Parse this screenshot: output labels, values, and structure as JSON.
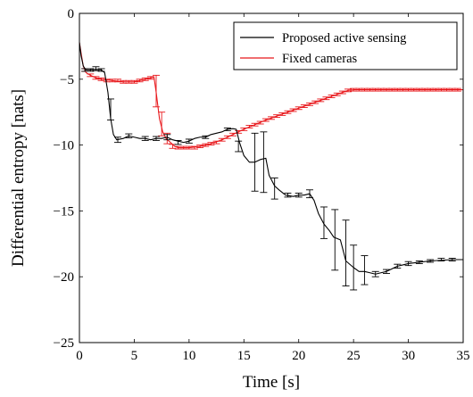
{
  "chart_data": {
    "type": "line",
    "xlabel": "Time [s]",
    "ylabel": "Differential entropy [nats]",
    "xlim": [
      0,
      35
    ],
    "ylim": [
      -25,
      0
    ],
    "xticks": [
      0,
      5,
      10,
      15,
      20,
      25,
      30,
      35
    ],
    "yticks": [
      0,
      -5,
      -10,
      -15,
      -20,
      -25
    ],
    "legend_position": "top-right",
    "series": [
      {
        "name": "Proposed active sensing",
        "color": "#000000",
        "line": [
          [
            0,
            -2.2
          ],
          [
            0.15,
            -3.2
          ],
          [
            0.35,
            -4.0
          ],
          [
            0.6,
            -4.3
          ],
          [
            1.0,
            -4.3
          ],
          [
            1.5,
            -4.25
          ],
          [
            2.0,
            -4.3
          ],
          [
            2.3,
            -4.5
          ],
          [
            2.6,
            -6.0
          ],
          [
            2.85,
            -8.0
          ],
          [
            3.1,
            -9.2
          ],
          [
            3.4,
            -9.6
          ],
          [
            4.0,
            -9.5
          ],
          [
            4.5,
            -9.3
          ],
          [
            5.0,
            -9.4
          ],
          [
            5.5,
            -9.5
          ],
          [
            6.0,
            -9.5
          ],
          [
            6.5,
            -9.6
          ],
          [
            7.0,
            -9.5
          ],
          [
            7.5,
            -9.5
          ],
          [
            8.0,
            -9.4
          ],
          [
            8.5,
            -9.6
          ],
          [
            9.0,
            -9.7
          ],
          [
            9.5,
            -9.8
          ],
          [
            10.0,
            -9.7
          ],
          [
            10.5,
            -9.5
          ],
          [
            11.0,
            -9.4
          ],
          [
            11.5,
            -9.4
          ],
          [
            12.0,
            -9.2
          ],
          [
            12.5,
            -9.1
          ],
          [
            13.0,
            -9.0
          ],
          [
            13.5,
            -8.8
          ],
          [
            14.0,
            -8.75
          ],
          [
            14.3,
            -8.8
          ],
          [
            14.6,
            -9.8
          ],
          [
            15.0,
            -10.8
          ],
          [
            15.5,
            -11.3
          ],
          [
            16.0,
            -11.3
          ],
          [
            16.5,
            -11.1
          ],
          [
            17.0,
            -11.0
          ],
          [
            17.3,
            -12.3
          ],
          [
            17.8,
            -13.1
          ],
          [
            18.2,
            -13.4
          ],
          [
            18.8,
            -13.8
          ],
          [
            19.5,
            -13.9
          ],
          [
            20.0,
            -13.8
          ],
          [
            20.5,
            -13.8
          ],
          [
            21.0,
            -13.7
          ],
          [
            21.4,
            -14.2
          ],
          [
            21.8,
            -15.2
          ],
          [
            22.3,
            -16.0
          ],
          [
            22.8,
            -16.5
          ],
          [
            23.2,
            -17.0
          ],
          [
            23.8,
            -17.2
          ],
          [
            24.3,
            -18.8
          ],
          [
            25.0,
            -19.3
          ],
          [
            25.5,
            -19.6
          ],
          [
            26.0,
            -19.6
          ],
          [
            26.5,
            -19.7
          ],
          [
            27.0,
            -19.8
          ],
          [
            27.5,
            -19.7
          ],
          [
            28.0,
            -19.6
          ],
          [
            28.5,
            -19.4
          ],
          [
            29.0,
            -19.2
          ],
          [
            29.5,
            -19.1
          ],
          [
            30.0,
            -19.0
          ],
          [
            31.0,
            -18.9
          ],
          [
            32.0,
            -18.8
          ],
          [
            33.0,
            -18.75
          ],
          [
            34.0,
            -18.7
          ],
          [
            35.0,
            -18.7
          ]
        ],
        "errorbars": [
          [
            0.5,
            -4.3,
            0.1
          ],
          [
            1.0,
            -4.3,
            0.1
          ],
          [
            1.5,
            -4.2,
            0.15
          ],
          [
            2.0,
            -4.3,
            0.1
          ],
          [
            2.85,
            -7.3,
            0.8
          ],
          [
            3.5,
            -9.6,
            0.2
          ],
          [
            4.5,
            -9.3,
            0.15
          ],
          [
            6.0,
            -9.5,
            0.15
          ],
          [
            7.0,
            -9.5,
            0.15
          ],
          [
            8.0,
            -9.4,
            0.2
          ],
          [
            9.0,
            -9.8,
            0.15
          ],
          [
            10.0,
            -9.7,
            0.15
          ],
          [
            11.5,
            -9.4,
            0.1
          ],
          [
            13.5,
            -8.8,
            0.1
          ],
          [
            14.5,
            -10.1,
            0.4
          ],
          [
            16.0,
            -11.3,
            2.2
          ],
          [
            16.8,
            -11.3,
            2.3
          ],
          [
            17.8,
            -13.3,
            0.8
          ],
          [
            19.0,
            -13.8,
            0.15
          ],
          [
            20.0,
            -13.8,
            0.15
          ],
          [
            21.0,
            -13.7,
            0.3
          ],
          [
            22.3,
            -15.9,
            1.2
          ],
          [
            23.3,
            -17.2,
            2.3
          ],
          [
            24.3,
            -18.2,
            2.5
          ],
          [
            25.0,
            -19.3,
            1.7
          ],
          [
            26.0,
            -19.5,
            1.1
          ],
          [
            27.0,
            -19.8,
            0.2
          ],
          [
            28.0,
            -19.6,
            0.15
          ],
          [
            29.0,
            -19.2,
            0.15
          ],
          [
            30.0,
            -19.0,
            0.15
          ],
          [
            31.0,
            -18.9,
            0.1
          ],
          [
            32.0,
            -18.8,
            0.1
          ],
          [
            33.0,
            -18.7,
            0.1
          ],
          [
            34.0,
            -18.7,
            0.1
          ]
        ]
      },
      {
        "name": "Fixed cameras",
        "color": "#e8171b",
        "line": [
          [
            0,
            -2.2
          ],
          [
            0.15,
            -3.0
          ],
          [
            0.35,
            -4.0
          ],
          [
            0.6,
            -4.5
          ],
          [
            1.0,
            -4.7
          ],
          [
            1.5,
            -4.9
          ],
          [
            2.0,
            -5.0
          ],
          [
            3.0,
            -5.1
          ],
          [
            4.0,
            -5.2
          ],
          [
            5.0,
            -5.2
          ],
          [
            5.5,
            -5.1
          ],
          [
            6.0,
            -5.0
          ],
          [
            6.5,
            -4.9
          ],
          [
            6.8,
            -4.85
          ],
          [
            7.0,
            -6.0
          ],
          [
            7.3,
            -8.0
          ],
          [
            7.6,
            -9.0
          ],
          [
            7.9,
            -9.5
          ],
          [
            8.3,
            -9.8
          ],
          [
            8.7,
            -10.1
          ],
          [
            9.0,
            -10.2
          ],
          [
            10.0,
            -10.2
          ],
          [
            11.0,
            -10.1
          ],
          [
            12.0,
            -9.9
          ],
          [
            13.0,
            -9.6
          ],
          [
            14.0,
            -9.2
          ],
          [
            15.0,
            -8.8
          ],
          [
            16.0,
            -8.45
          ],
          [
            17.0,
            -8.1
          ],
          [
            18.0,
            -7.8
          ],
          [
            19.0,
            -7.5
          ],
          [
            20.0,
            -7.2
          ],
          [
            21.0,
            -6.9
          ],
          [
            22.0,
            -6.6
          ],
          [
            23.0,
            -6.3
          ],
          [
            24.0,
            -6.0
          ],
          [
            24.5,
            -5.85
          ],
          [
            25.0,
            -5.8
          ],
          [
            35.0,
            -5.8
          ]
        ],
        "errorbars": [
          [
            0.5,
            -4.3,
            0.1
          ],
          [
            1.0,
            -4.7,
            0.1
          ],
          [
            1.5,
            -4.9,
            0.1
          ],
          [
            2.0,
            -5.0,
            0.1
          ],
          [
            2.5,
            -5.1,
            0.1
          ],
          [
            3.0,
            -5.1,
            0.1
          ],
          [
            3.5,
            -5.1,
            0.1
          ],
          [
            4.0,
            -5.2,
            0.1
          ],
          [
            4.5,
            -5.2,
            0.1
          ],
          [
            5.0,
            -5.2,
            0.1
          ],
          [
            5.5,
            -5.1,
            0.1
          ],
          [
            6.0,
            -5.0,
            0.1
          ],
          [
            6.5,
            -4.9,
            0.1
          ],
          [
            7.0,
            -5.9,
            1.2
          ],
          [
            7.5,
            -8.4,
            0.9
          ],
          [
            8.0,
            -9.5,
            0.4
          ],
          [
            8.5,
            -10.1,
            0.15
          ],
          [
            9.0,
            -10.2,
            0.1
          ],
          [
            9.5,
            -10.2,
            0.1
          ],
          [
            10.0,
            -10.2,
            0.1
          ],
          [
            10.5,
            -10.2,
            0.1
          ],
          [
            11.0,
            -10.1,
            0.1
          ],
          [
            11.5,
            -10.0,
            0.1
          ],
          [
            12.0,
            -9.9,
            0.1
          ],
          [
            12.5,
            -9.8,
            0.1
          ],
          [
            13.0,
            -9.6,
            0.1
          ],
          [
            13.5,
            -9.4,
            0.1
          ],
          [
            14.0,
            -9.2,
            0.1
          ],
          [
            14.5,
            -9.0,
            0.1
          ],
          [
            15.0,
            -8.8,
            0.1
          ],
          [
            15.5,
            -8.6,
            0.1
          ],
          [
            16.0,
            -8.45,
            0.1
          ],
          [
            16.5,
            -8.3,
            0.1
          ],
          [
            17.0,
            -8.1,
            0.1
          ],
          [
            17.5,
            -7.95,
            0.1
          ],
          [
            18.0,
            -7.8,
            0.1
          ],
          [
            18.5,
            -7.65,
            0.1
          ],
          [
            19.0,
            -7.5,
            0.1
          ],
          [
            19.5,
            -7.35,
            0.1
          ],
          [
            20.0,
            -7.2,
            0.1
          ],
          [
            20.5,
            -7.05,
            0.1
          ],
          [
            21.0,
            -6.9,
            0.1
          ],
          [
            21.5,
            -6.75,
            0.1
          ],
          [
            22.0,
            -6.6,
            0.1
          ],
          [
            22.5,
            -6.45,
            0.1
          ],
          [
            23.0,
            -6.3,
            0.1
          ],
          [
            23.5,
            -6.15,
            0.1
          ],
          [
            24.0,
            -6.0,
            0.1
          ],
          [
            24.5,
            -5.85,
            0.1
          ],
          [
            25.0,
            -5.8,
            0.1
          ],
          [
            25.5,
            -5.8,
            0.1
          ],
          [
            26.0,
            -5.8,
            0.1
          ],
          [
            26.5,
            -5.8,
            0.1
          ],
          [
            27.0,
            -5.8,
            0.1
          ],
          [
            27.5,
            -5.8,
            0.1
          ],
          [
            28.0,
            -5.8,
            0.1
          ],
          [
            28.5,
            -5.8,
            0.1
          ],
          [
            29.0,
            -5.8,
            0.1
          ],
          [
            29.5,
            -5.8,
            0.1
          ],
          [
            30.0,
            -5.8,
            0.1
          ],
          [
            30.5,
            -5.8,
            0.1
          ],
          [
            31.0,
            -5.8,
            0.1
          ],
          [
            31.5,
            -5.8,
            0.1
          ],
          [
            32.0,
            -5.8,
            0.1
          ],
          [
            32.5,
            -5.8,
            0.1
          ],
          [
            33.0,
            -5.8,
            0.1
          ],
          [
            33.5,
            -5.8,
            0.1
          ],
          [
            34.0,
            -5.8,
            0.1
          ],
          [
            34.5,
            -5.8,
            0.1
          ]
        ]
      }
    ]
  }
}
